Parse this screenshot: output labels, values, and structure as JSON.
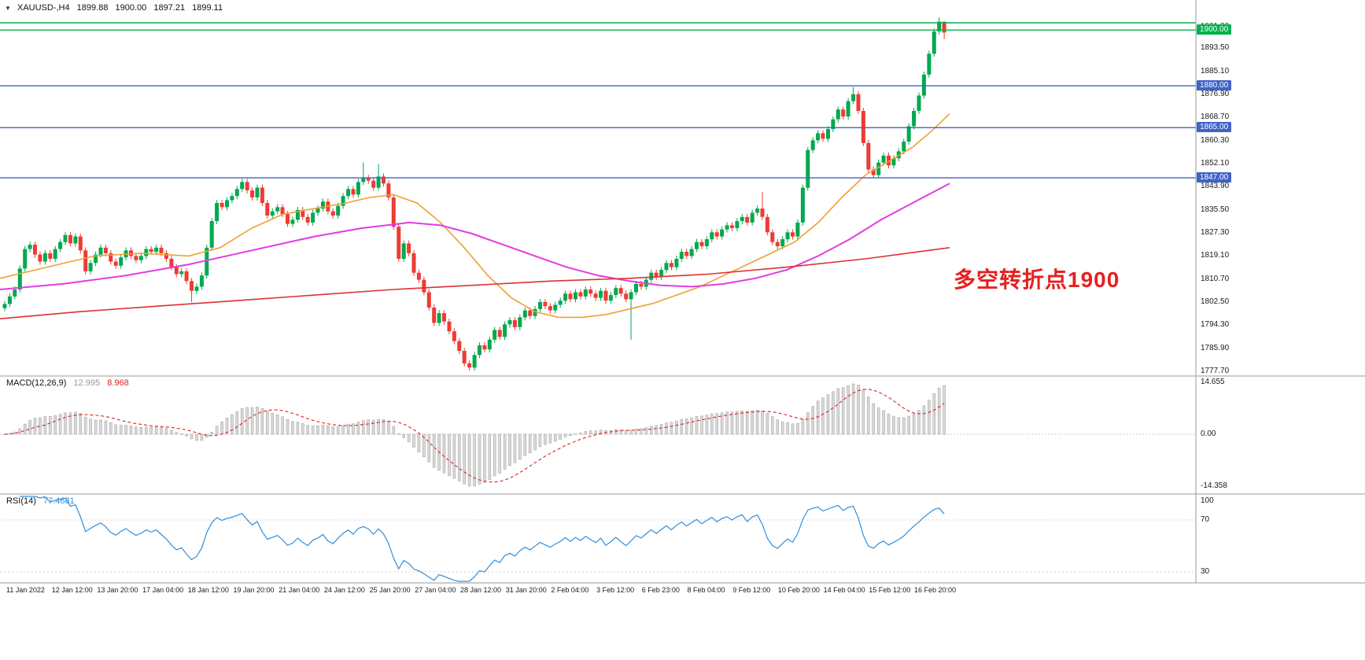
{
  "colors": {
    "candle_up": "#00a94f",
    "candle_down": "#ee3b33",
    "macd_bar_fill": "#d9d9d9",
    "macd_bar_stroke": "#a8a8a8",
    "macd_signal": "#dd2222",
    "rsi_line": "#2e8fde",
    "hline_green": "#00b14c",
    "hline_blue": "#3f63c8",
    "divider": "#9a9a9a"
  },
  "chart_data": {
    "type": "candlestick+indicators",
    "symbol_timeframe": "XAUUSD-,H4",
    "quote": {
      "open": "1899.88",
      "high": "1900.00",
      "low": "1897.21",
      "close": "1899.11"
    },
    "price_axis": [
      "1901.30",
      "1893.50",
      "1885.10",
      "1876.90",
      "1868.70",
      "1860.30",
      "1852.10",
      "1843.90",
      "1835.50",
      "1827.30",
      "1819.10",
      "1810.70",
      "1802.50",
      "1794.30",
      "1785.90",
      "1777.70"
    ],
    "time_axis": [
      "11 Jan 2022",
      "12 Jan 12:00",
      "13 Jan 20:00",
      "17 Jan 04:00",
      "18 Jan 12:00",
      "19 Jan 20:00",
      "21 Jan 04:00",
      "24 Jan 12:00",
      "25 Jan 20:00",
      "27 Jan 04:00",
      "28 Jan 12:00",
      "31 Jan 20:00",
      "2 Feb 04:00",
      "3 Feb 12:00",
      "6 Feb 23:00",
      "8 Feb 04:00",
      "9 Feb 12:00",
      "10 Feb 20:00",
      "14 Feb 04:00",
      "15 Feb 12:00",
      "16 Feb 20:00"
    ],
    "hlines": [
      {
        "price": 1902.6,
        "color": "#00b14c",
        "label": null
      },
      {
        "price": 1900.0,
        "color": "#00b14c",
        "label": "1900.00"
      },
      {
        "price": 1880.0,
        "color": "#3f63c8",
        "label": "1880.00"
      },
      {
        "price": 1865.0,
        "color": "#3f63c8",
        "label": "1865.00"
      },
      {
        "price": 1847.0,
        "color": "#3f63c8",
        "label": "1847.00"
      }
    ],
    "candles": {
      "closes": [
        1801.8,
        1804.5,
        1807.0,
        1814.5,
        1821.5,
        1823.0,
        1819.5,
        1817.0,
        1820.0,
        1818.0,
        1821.5,
        1824.0,
        1826.5,
        1823.5,
        1826.0,
        1821.0,
        1813.5,
        1816.5,
        1819.5,
        1822.0,
        1820.0,
        1817.0,
        1815.5,
        1818.5,
        1821.0,
        1819.0,
        1817.5,
        1819.0,
        1821.5,
        1820.5,
        1822.0,
        1820.0,
        1818.0,
        1815.0,
        1812.5,
        1813.5,
        1810.0,
        1806.5,
        1808.0,
        1812.0,
        1822.0,
        1831.5,
        1838.0,
        1836.5,
        1839.0,
        1840.5,
        1843.0,
        1845.5,
        1842.5,
        1840.0,
        1843.5,
        1838.0,
        1833.5,
        1835.0,
        1836.5,
        1834.0,
        1830.5,
        1832.0,
        1835.5,
        1833.0,
        1831.0,
        1834.5,
        1836.0,
        1838.5,
        1835.0,
        1833.5,
        1837.0,
        1840.5,
        1843.0,
        1841.0,
        1845.5,
        1847.0,
        1846.0,
        1843.5,
        1847.5,
        1845.0,
        1840.0,
        1829.5,
        1818.0,
        1823.5,
        1820.0,
        1813.0,
        1810.5,
        1806.0,
        1800.5,
        1795.0,
        1798.5,
        1795.5,
        1792.0,
        1788.5,
        1785.0,
        1780.5,
        1779.0,
        1783.5,
        1787.0,
        1785.5,
        1789.0,
        1792.5,
        1790.0,
        1794.5,
        1796.0,
        1793.5,
        1797.0,
        1799.5,
        1797.5,
        1800.0,
        1802.5,
        1801.0,
        1799.5,
        1801.5,
        1803.0,
        1805.5,
        1803.5,
        1806.0,
        1804.5,
        1807.0,
        1805.5,
        1804.0,
        1806.5,
        1803.0,
        1805.0,
        1807.5,
        1805.5,
        1803.5,
        1806.0,
        1809.0,
        1808.0,
        1810.5,
        1813.0,
        1811.5,
        1814.0,
        1816.5,
        1815.0,
        1818.0,
        1820.5,
        1819.0,
        1821.5,
        1824.0,
        1822.5,
        1825.0,
        1827.5,
        1826.0,
        1828.5,
        1830.0,
        1829.0,
        1831.5,
        1833.0,
        1831.0,
        1834.5,
        1836.0,
        1833.0,
        1827.5,
        1824.0,
        1822.5,
        1825.0,
        1827.5,
        1826.0,
        1831.0,
        1843.5,
        1857.0,
        1860.5,
        1863.0,
        1861.0,
        1864.5,
        1868.0,
        1871.5,
        1869.0,
        1874.5,
        1877.0,
        1871.0,
        1859.5,
        1850.0,
        1848.0,
        1852.5,
        1855.0,
        1851.5,
        1854.0,
        1856.5,
        1860.0,
        1865.5,
        1871.0,
        1876.5,
        1884.0,
        1891.5,
        1899.5,
        1903.0,
        1899.1
      ],
      "wick_overrides": {
        "37": {
          "low": 1802.5
        },
        "71": {
          "high": 1852.5
        },
        "74": {
          "high": 1852.0
        },
        "92": {
          "low": 1777.9
        },
        "124": {
          "low": 1789.0
        },
        "150": {
          "high": 1842.0
        },
        "168": {
          "high": 1879.5
        },
        "185": {
          "high": 1904.6
        },
        "186": {
          "high": 1901.0,
          "low": 1896.8
        }
      }
    },
    "moving_averages": [
      {
        "name": "ma-fast-orange",
        "color": "#f0a030",
        "points": [
          [
            0,
            1811
          ],
          [
            60,
            1815
          ],
          [
            120,
            1819
          ],
          [
            180,
            1820
          ],
          [
            240,
            1819
          ],
          [
            280,
            1822
          ],
          [
            320,
            1829
          ],
          [
            360,
            1834
          ],
          [
            400,
            1836
          ],
          [
            440,
            1838
          ],
          [
            470,
            1840
          ],
          [
            500,
            1841
          ],
          [
            530,
            1838
          ],
          [
            560,
            1831
          ],
          [
            590,
            1822
          ],
          [
            620,
            1812
          ],
          [
            650,
            1804
          ],
          [
            680,
            1799
          ],
          [
            710,
            1797
          ],
          [
            740,
            1797
          ],
          [
            770,
            1798
          ],
          [
            800,
            1800
          ],
          [
            830,
            1802
          ],
          [
            860,
            1805
          ],
          [
            890,
            1808
          ],
          [
            920,
            1812
          ],
          [
            950,
            1816
          ],
          [
            980,
            1820
          ],
          [
            1010,
            1824
          ],
          [
            1040,
            1831
          ],
          [
            1070,
            1840
          ],
          [
            1100,
            1848
          ],
          [
            1130,
            1853
          ],
          [
            1160,
            1858
          ],
          [
            1185,
            1864
          ],
          [
            1207,
            1870
          ]
        ]
      },
      {
        "name": "ma-mid-magenta",
        "color": "#e23ce2",
        "points": [
          [
            0,
            1807
          ],
          [
            80,
            1809
          ],
          [
            160,
            1812
          ],
          [
            240,
            1816
          ],
          [
            320,
            1821
          ],
          [
            400,
            1826
          ],
          [
            460,
            1829
          ],
          [
            520,
            1831
          ],
          [
            560,
            1830
          ],
          [
            600,
            1827
          ],
          [
            640,
            1823
          ],
          [
            680,
            1819
          ],
          [
            720,
            1815
          ],
          [
            760,
            1812
          ],
          [
            800,
            1810
          ],
          [
            840,
            1808.5
          ],
          [
            880,
            1808
          ],
          [
            920,
            1809
          ],
          [
            960,
            1811
          ],
          [
            1000,
            1814
          ],
          [
            1040,
            1819
          ],
          [
            1080,
            1825
          ],
          [
            1120,
            1832
          ],
          [
            1160,
            1838
          ],
          [
            1207,
            1845
          ]
        ]
      },
      {
        "name": "ma-slow-red",
        "color": "#e03030",
        "points": [
          [
            0,
            1796.5
          ],
          [
            100,
            1799
          ],
          [
            200,
            1801
          ],
          [
            300,
            1803
          ],
          [
            400,
            1805
          ],
          [
            500,
            1807
          ],
          [
            600,
            1808.5
          ],
          [
            700,
            1810
          ],
          [
            800,
            1811
          ],
          [
            900,
            1812.5
          ],
          [
            1000,
            1815
          ],
          [
            1100,
            1818
          ],
          [
            1207,
            1822
          ]
        ]
      }
    ],
    "macd": {
      "title": "MACD(12,26,9)",
      "main_value": "12.995",
      "signal_value": "8.968",
      "fast": 12,
      "slow": 26,
      "signal": 9,
      "axis": [
        "14.655",
        "0.00",
        "-14.358"
      ]
    },
    "rsi": {
      "title": "RSI(14)",
      "value": "77.4681",
      "period": 14,
      "axis": [
        "100",
        "70",
        "30"
      ],
      "levels": [
        70,
        30
      ]
    },
    "annotation": {
      "text": "多空转折点1900",
      "color": "#e62020"
    }
  }
}
